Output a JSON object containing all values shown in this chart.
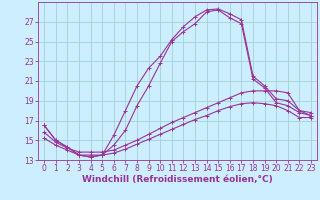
{
  "xlabel": "Windchill (Refroidissement éolien,°C)",
  "bg_color": "#cceeff",
  "grid_color": "#99cccc",
  "line_color": "#993399",
  "hours": [
    0,
    1,
    2,
    3,
    4,
    5,
    6,
    7,
    8,
    9,
    10,
    11,
    12,
    13,
    14,
    15,
    16,
    17,
    18,
    19,
    20,
    21,
    22,
    23
  ],
  "curve1": [
    16.5,
    15.0,
    14.3,
    13.5,
    13.3,
    13.5,
    15.5,
    18.0,
    20.5,
    22.3,
    23.5,
    25.2,
    26.5,
    27.5,
    28.2,
    28.3,
    27.8,
    27.2,
    21.5,
    20.5,
    19.2,
    19.0,
    18.0,
    17.5
  ],
  "curve2": [
    16.5,
    15.0,
    14.3,
    13.5,
    13.3,
    13.5,
    14.5,
    16.0,
    18.5,
    20.5,
    22.8,
    25.0,
    26.0,
    26.8,
    28.0,
    28.2,
    27.4,
    26.8,
    21.2,
    20.3,
    18.8,
    18.5,
    17.8,
    17.5
  ],
  "curve3": [
    15.8,
    14.8,
    14.2,
    13.8,
    13.8,
    13.8,
    14.0,
    14.5,
    15.0,
    15.6,
    16.2,
    16.8,
    17.3,
    17.8,
    18.3,
    18.8,
    19.3,
    19.8,
    20.0,
    20.0,
    20.0,
    19.8,
    18.0,
    17.8
  ],
  "curve4": [
    15.2,
    14.5,
    14.0,
    13.5,
    13.5,
    13.5,
    13.7,
    14.1,
    14.6,
    15.1,
    15.6,
    16.1,
    16.6,
    17.1,
    17.5,
    18.0,
    18.4,
    18.7,
    18.8,
    18.7,
    18.5,
    18.0,
    17.3,
    17.3
  ],
  "ylim": [
    13,
    29
  ],
  "yticks": [
    13,
    15,
    17,
    19,
    21,
    23,
    25,
    27
  ],
  "xticks": [
    0,
    1,
    2,
    3,
    4,
    5,
    6,
    7,
    8,
    9,
    10,
    11,
    12,
    13,
    14,
    15,
    16,
    17,
    18,
    19,
    20,
    21,
    22,
    23
  ],
  "marker": "+",
  "markersize": 3,
  "linewidth": 0.8,
  "tick_fontsize": 5.5,
  "xlabel_fontsize": 6.5
}
